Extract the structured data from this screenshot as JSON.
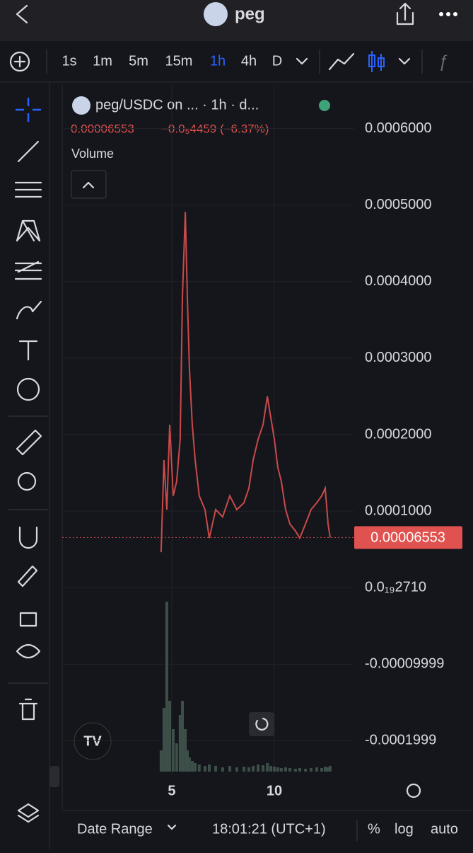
{
  "header": {
    "title": "peg"
  },
  "toolbar": {
    "intervals": [
      "1s",
      "1m",
      "5m",
      "15m",
      "1h",
      "4h",
      "D"
    ],
    "active": "1h"
  },
  "legend": {
    "symbol": "peg/USDC on ... · 1h · d...",
    "change": "−0.0₅4459 (−6.37%)",
    "volume_label": "Volume"
  },
  "chart_data": {
    "type": "line",
    "x": [
      4.48,
      4.62,
      4.76,
      4.9,
      5.07,
      5.24,
      5.41,
      5.52,
      5.66,
      5.76,
      5.86,
      6.0,
      6.14,
      6.34,
      6.62,
      6.83,
      7.14,
      7.48,
      7.83,
      8.17,
      8.52,
      8.76,
      8.97,
      9.21,
      9.45,
      9.66,
      9.83,
      10.0,
      10.17,
      10.34,
      10.55,
      10.76,
      11.03,
      11.24,
      11.52,
      11.79,
      12.07,
      12.31,
      12.48,
      12.62,
      12.72
    ],
    "values": [
      4.63e-05,
      0.0001667,
      0.0001019,
      0.000213,
      0.00012,
      0.000139,
      0.000194,
      0.00038,
      0.000491,
      0.00038,
      0.000287,
      0.000213,
      0.000167,
      0.00012,
      0.000102,
      6.48e-05,
      0.000102,
      9.26e-05,
      0.00012,
      0.000102,
      0.000111,
      0.00013,
      0.000167,
      0.000194,
      0.000213,
      0.00025,
      0.000222,
      0.000194,
      0.000157,
      0.000139,
      0.000102,
      8.33e-05,
      7.41e-05,
      6.48e-05,
      8.33e-05,
      0.000102,
      0.000111,
      0.00012,
      0.00013,
      8.33e-05,
      6.553e-05
    ],
    "color": "#c94a4a",
    "last_price": 6.553e-05,
    "xlim": [
      -0.34,
      13.86
    ],
    "xticks": [
      5,
      10
    ],
    "ylim": [
      -0.000245,
      0.000657
    ],
    "yticks": [
      {
        "value": 0.0006,
        "label": "0.0006000"
      },
      {
        "value": 0.0005,
        "label": "0.0005000"
      },
      {
        "value": 0.0004,
        "label": "0.0004000"
      },
      {
        "value": 0.0003,
        "label": "0.0003000"
      },
      {
        "value": 0.0002,
        "label": "0.0002000"
      },
      {
        "value": 0.0001,
        "label": "0.0001000"
      },
      {
        "value": 2.71e-20,
        "label": "0.0₁₉2710"
      },
      {
        "value": -9.999e-05,
        "label": "-0.00009999"
      },
      {
        "value": -0.0001999,
        "label": "-0.0001999"
      }
    ],
    "volume": {
      "values": [
        30,
        90,
        240,
        100,
        60,
        40,
        80,
        100,
        60,
        30,
        20,
        15,
        12,
        10,
        8,
        10,
        8,
        6,
        8,
        6,
        7,
        6,
        8,
        10,
        9,
        12,
        8,
        7,
        6,
        5,
        6,
        5,
        4,
        5,
        4,
        5,
        6,
        5,
        7,
        6,
        8
      ],
      "ylim": [
        0,
        240
      ],
      "color": "#3d4f49"
    }
  },
  "footer": {
    "date_range": "Date Range",
    "time": "18:01:21 (UTC+1)",
    "percent": "%",
    "log": "log",
    "auto": "auto"
  }
}
